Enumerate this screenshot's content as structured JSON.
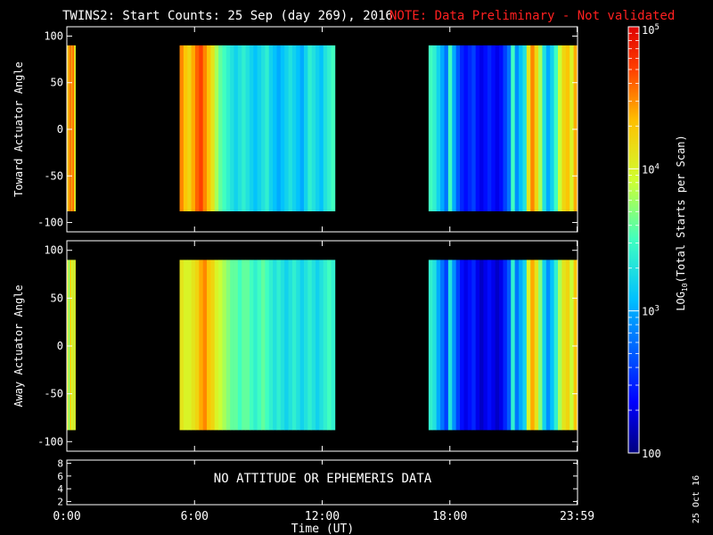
{
  "title": {
    "main": "TWINS2: Start Counts: 25 Sep (day 269), 2016",
    "note": "NOTE: Data Preliminary - Not validated",
    "note_color": "#ff2020"
  },
  "stamp": "25 Oct 16",
  "colorbar": {
    "label_prefix": "LOG",
    "label_sub": "10",
    "label_suffix": "(Total Starts per Scan)",
    "scale": "log",
    "range": [
      100,
      100000
    ],
    "tick_labels": [
      {
        "value": 100,
        "base": "100",
        "exp": ""
      },
      {
        "value": 1000,
        "base": "10",
        "exp": "3"
      },
      {
        "value": 10000,
        "base": "10",
        "exp": "4"
      },
      {
        "value": 100000,
        "base": "10",
        "exp": "5"
      }
    ]
  },
  "time_axis": {
    "label": "Time (UT)",
    "range_hours": [
      0,
      24
    ],
    "ticks": [
      {
        "hour": 0,
        "label": "0:00"
      },
      {
        "hour": 6,
        "label": "6:00"
      },
      {
        "hour": 12,
        "label": "12:00"
      },
      {
        "hour": 18,
        "label": "18:00"
      },
      {
        "hour": 23.98,
        "label": "23:59"
      }
    ]
  },
  "ephemeris_panel": {
    "message": "NO ATTITUDE OR EPHEMERIS DATA",
    "ylim": [
      1.5,
      8.5
    ],
    "ticks": [
      "2",
      "4",
      "6",
      "8"
    ]
  },
  "chart_data": [
    {
      "type": "heatmap",
      "id": "toward",
      "ylabel": "Toward Actuator Angle",
      "ylim": [
        -110,
        110
      ],
      "yticks": [
        "-100",
        "-50",
        "0",
        "50",
        "100"
      ],
      "angle_coverage": [
        -88,
        90
      ],
      "segments": [
        {
          "start_hour": 0.0,
          "end_hour": 0.4,
          "log10_counts": [
            4.4,
            4.1,
            4.6,
            4.3,
            4.8,
            4.2,
            4.5,
            4.7,
            4.3,
            4.0
          ]
        },
        {
          "start_hour": 5.3,
          "end_hour": 12.6,
          "log10_counts": [
            4.5,
            4.3,
            4.2,
            4.4,
            4.6,
            4.7,
            4.5,
            4.3,
            4.1,
            3.8,
            3.6,
            3.5,
            3.4,
            3.3,
            3.2,
            3.3,
            3.4,
            3.3,
            3.2,
            3.1,
            3.2,
            3.3,
            3.4,
            3.2,
            3.1,
            3.0,
            3.1,
            3.2,
            3.3,
            3.2,
            3.1,
            3.0,
            3.2,
            3.4,
            3.3,
            3.2,
            3.1,
            3.3,
            3.4,
            3.5
          ]
        },
        {
          "start_hour": 17.0,
          "end_hour": 24.0,
          "log10_counts": [
            3.5,
            3.4,
            3.2,
            3.0,
            2.8,
            3.5,
            3.0,
            2.7,
            2.5,
            2.4,
            2.5,
            2.6,
            2.4,
            2.3,
            2.4,
            2.5,
            2.4,
            2.3,
            2.4,
            2.6,
            2.8,
            3.5,
            2.9,
            3.1,
            3.3,
            4.1,
            4.5,
            4.2,
            3.8,
            3.3,
            3.0,
            3.2,
            3.5,
            3.9,
            4.2,
            4.3,
            4.0,
            4.4
          ]
        }
      ]
    },
    {
      "type": "heatmap",
      "id": "away",
      "ylabel": "Away Actuator Angle",
      "ylim": [
        -110,
        110
      ],
      "yticks": [
        "-100",
        "-50",
        "0",
        "50",
        "100"
      ],
      "angle_coverage": [
        -88,
        90
      ],
      "segments": [
        {
          "start_hour": 0.0,
          "end_hour": 0.4,
          "log10_counts": [
            4.2,
            4.0,
            3.6,
            4.1,
            4.3,
            3.9,
            4.0,
            4.2,
            3.8,
            4.1
          ]
        },
        {
          "start_hour": 5.3,
          "end_hour": 12.6,
          "log10_counts": [
            4.1,
            4.0,
            4.0,
            4.1,
            4.2,
            4.4,
            4.5,
            4.3,
            4.2,
            4.0,
            3.9,
            3.8,
            3.7,
            3.6,
            3.6,
            3.5,
            3.6,
            3.6,
            3.5,
            3.4,
            3.5,
            3.6,
            3.5,
            3.4,
            3.3,
            3.4,
            3.3,
            3.2,
            3.3,
            3.4,
            3.3,
            3.2,
            3.3,
            3.4,
            3.3,
            3.2,
            3.3,
            3.4,
            3.5,
            3.4
          ]
        },
        {
          "start_hour": 17.0,
          "end_hour": 24.0,
          "log10_counts": [
            3.4,
            3.3,
            3.0,
            2.8,
            2.6,
            3.3,
            2.9,
            2.6,
            2.4,
            2.3,
            2.4,
            2.5,
            2.3,
            2.2,
            2.3,
            2.4,
            2.3,
            2.2,
            2.3,
            2.5,
            2.7,
            3.4,
            2.8,
            3.0,
            3.2,
            4.0,
            4.4,
            4.1,
            3.7,
            3.2,
            2.9,
            3.1,
            3.4,
            3.8,
            4.1,
            4.2,
            3.9,
            4.3
          ]
        }
      ]
    }
  ]
}
